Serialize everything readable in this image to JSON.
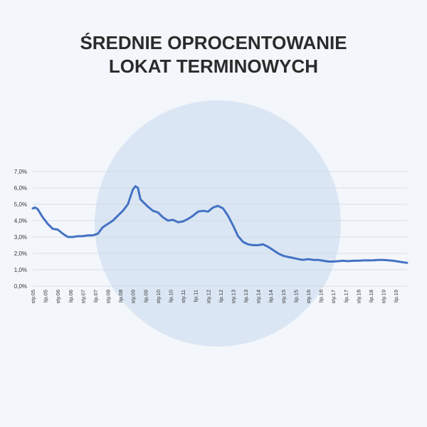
{
  "title_line1": "ŚREDNIE OPROCENTOWANIE",
  "title_line2": "LOKAT TERMINOWYCH",
  "colors": {
    "background": "#f3f6fb",
    "circle": "#dbe6f4",
    "line": "#4472c4",
    "grid": "#cfd5dd",
    "title": "#2b2b2b"
  },
  "chart_data": {
    "type": "line",
    "title": "ŚREDNIE OPROCENTOWANIE LOKAT TERMINOWYCH",
    "xlabel": "",
    "ylabel": "",
    "ylim": [
      0,
      7
    ],
    "grid": true,
    "legend": "none",
    "y_ticks": [
      "0,0%",
      "1,0%",
      "2,0%",
      "3,0%",
      "4,0%",
      "5,0%",
      "6,0%",
      "7,0%"
    ],
    "x_ticks": [
      "sty.05",
      "lip.05",
      "sty.06",
      "lip.06",
      "sty.07",
      "lip.07",
      "sty.08",
      "lip.08",
      "sty.09",
      "lip.09",
      "sty.10",
      "lip.10",
      "sty.11",
      "lip.11",
      "sty.12",
      "lip.12",
      "sty.13",
      "lip.13",
      "sty.14",
      "lip.14",
      "sty.15",
      "lip.15",
      "sty.16",
      "lip.16",
      "sty.17",
      "lip.17",
      "sty.18",
      "lip.18",
      "sty.19",
      "lip.19"
    ],
    "series": [
      {
        "x": [
          2005.0,
          2005.1,
          2005.2,
          2005.4,
          2005.6,
          2005.8,
          2006.0,
          2006.2,
          2006.4,
          2006.6,
          2006.8,
          2007.0,
          2007.2,
          2007.4,
          2007.6,
          2007.8,
          2008.0,
          2008.2,
          2008.4,
          2008.6,
          2008.8,
          2009.0,
          2009.1,
          2009.2,
          2009.3,
          2009.4,
          2009.5,
          2009.6,
          2009.8,
          2010.0,
          2010.2,
          2010.4,
          2010.6,
          2010.8,
          2011.0,
          2011.2,
          2011.4,
          2011.6,
          2011.8,
          2012.0,
          2012.2,
          2012.4,
          2012.6,
          2012.8,
          2013.0,
          2013.2,
          2013.4,
          2013.6,
          2013.8,
          2014.0,
          2014.2,
          2014.4,
          2014.6,
          2014.8,
          2015.0,
          2015.2,
          2015.4,
          2015.6,
          2015.8,
          2016.0,
          2016.2,
          2016.4,
          2016.6,
          2016.8,
          2017.0,
          2017.2,
          2017.4,
          2017.6,
          2017.8,
          2018.0,
          2018.2,
          2018.4,
          2018.6,
          2018.8,
          2019.0,
          2019.2,
          2019.4,
          2019.6,
          2019.8,
          2019.95
        ],
        "y": [
          4.75,
          4.8,
          4.7,
          4.2,
          3.8,
          3.5,
          3.45,
          3.2,
          3.0,
          3.0,
          3.05,
          3.05,
          3.1,
          3.1,
          3.2,
          3.6,
          3.8,
          4.0,
          4.3,
          4.6,
          5.0,
          5.9,
          6.1,
          6.0,
          5.3,
          5.15,
          5.0,
          4.85,
          4.6,
          4.5,
          4.2,
          4.0,
          4.05,
          3.9,
          3.95,
          4.1,
          4.3,
          4.55,
          4.6,
          4.55,
          4.8,
          4.9,
          4.75,
          4.3,
          3.7,
          3.05,
          2.7,
          2.55,
          2.5,
          2.5,
          2.55,
          2.4,
          2.2,
          2.0,
          1.85,
          1.78,
          1.72,
          1.65,
          1.6,
          1.65,
          1.6,
          1.6,
          1.55,
          1.5,
          1.5,
          1.52,
          1.55,
          1.52,
          1.55,
          1.55,
          1.57,
          1.57,
          1.58,
          1.6,
          1.6,
          1.58,
          1.55,
          1.5,
          1.45,
          1.42
        ]
      }
    ]
  }
}
